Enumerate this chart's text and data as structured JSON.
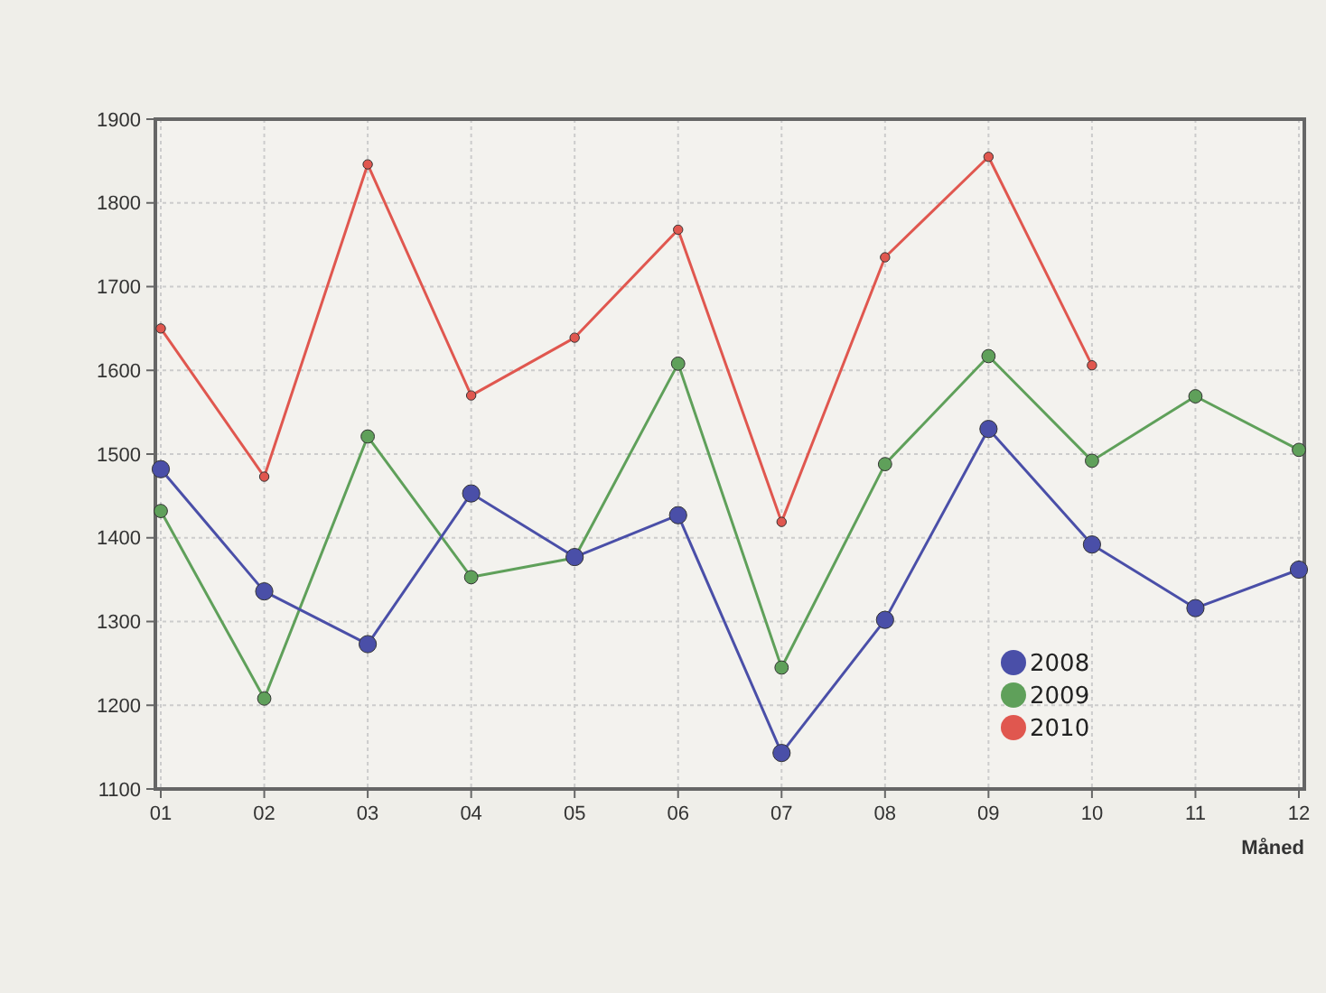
{
  "chart_data": {
    "type": "line",
    "xlabel": "Måned",
    "categories": [
      "01",
      "02",
      "03",
      "04",
      "05",
      "06",
      "07",
      "08",
      "09",
      "10",
      "11",
      "12"
    ],
    "ylim": [
      1100,
      1900
    ],
    "yticks": [
      1100,
      1200,
      1300,
      1400,
      1500,
      1600,
      1700,
      1800,
      1900
    ],
    "grid": true,
    "legend": "bottom right",
    "marker": "circle",
    "line_style": "solid",
    "series": [
      {
        "name": "2008",
        "color": "#4a4fa8",
        "values": [
          1482,
          1336,
          1273,
          1453,
          1377,
          1427,
          1143,
          1302,
          1530,
          1392,
          1316,
          1362
        ]
      },
      {
        "name": "2009",
        "color": "#5fa05a",
        "values": [
          1432,
          1208,
          1521,
          1353,
          1376,
          1608,
          1245,
          1488,
          1617,
          1492,
          1569,
          1505
        ]
      },
      {
        "name": "2010",
        "color": "#e0574f",
        "values": [
          1650,
          1473,
          1846,
          1570,
          1639,
          1768,
          1419,
          1735,
          1855,
          1606,
          null,
          null
        ]
      }
    ]
  }
}
